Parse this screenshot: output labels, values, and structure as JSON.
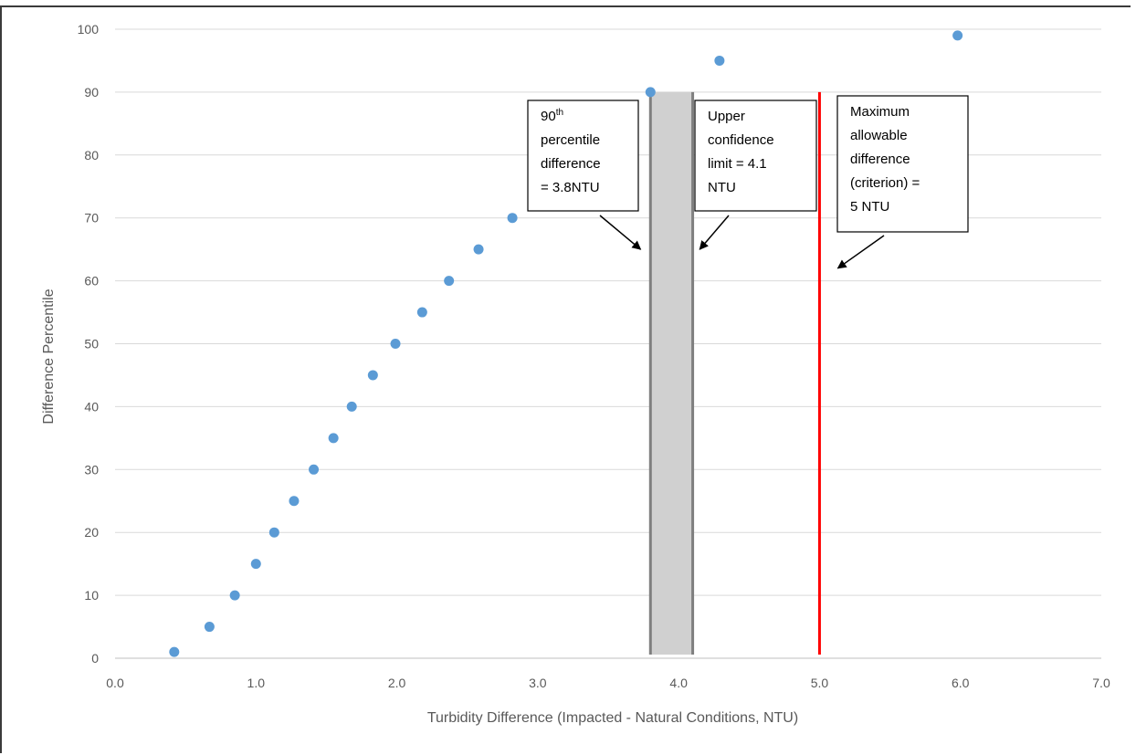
{
  "chart_data": {
    "type": "scatter",
    "xlabel": "Turbidity Difference (Impacted - Natural Conditions, NTU)",
    "ylabel": "Difference Percentile",
    "xlim": [
      0,
      7
    ],
    "ylim": [
      0,
      100
    ],
    "x_ticks": [
      "0.0",
      "1.0",
      "2.0",
      "3.0",
      "4.0",
      "5.0",
      "6.0",
      "7.0"
    ],
    "y_ticks": [
      "0",
      "10",
      "20",
      "30",
      "40",
      "50",
      "60",
      "70",
      "80",
      "90",
      "100"
    ],
    "grid": true,
    "marker_color": "#5b9bd5",
    "points": [
      {
        "x": 0.42,
        "y": 1
      },
      {
        "x": 0.67,
        "y": 5
      },
      {
        "x": 0.85,
        "y": 10
      },
      {
        "x": 1.0,
        "y": 15
      },
      {
        "x": 1.13,
        "y": 20
      },
      {
        "x": 1.27,
        "y": 25
      },
      {
        "x": 1.41,
        "y": 30
      },
      {
        "x": 1.55,
        "y": 35
      },
      {
        "x": 1.68,
        "y": 40
      },
      {
        "x": 1.83,
        "y": 45
      },
      {
        "x": 1.99,
        "y": 50
      },
      {
        "x": 2.18,
        "y": 55
      },
      {
        "x": 2.37,
        "y": 60
      },
      {
        "x": 2.58,
        "y": 65
      },
      {
        "x": 2.82,
        "y": 70
      },
      {
        "x": 3.8,
        "y": 90
      },
      {
        "x": 4.29,
        "y": 95
      },
      {
        "x": 5.98,
        "y": 99
      }
    ],
    "confidence_band": {
      "from": 3.8,
      "to": 4.1,
      "top": 90,
      "fill": "#d0d0d0",
      "edge": "#7f7f7f"
    },
    "criterion_line": {
      "x": 5.0,
      "top": 90,
      "color": "#ff0000"
    },
    "annotations": [
      {
        "lines": [
          "90th",
          "percentile",
          "difference",
          "= 3.8NTU"
        ],
        "superscript_line": 0,
        "base": "90",
        "sup": "th",
        "arrow_to": {
          "x": 3.73,
          "y": 65
        }
      },
      {
        "lines": [
          "Upper",
          "confidence",
          "limit = 4.1",
          "NTU"
        ],
        "arrow_to": {
          "x": 4.15,
          "y": 65
        }
      },
      {
        "lines": [
          "Maximum",
          "allowable",
          "difference",
          "(criterion) =",
          "5 NTU"
        ],
        "arrow_to": {
          "x": 5.13,
          "y": 62
        }
      }
    ]
  }
}
